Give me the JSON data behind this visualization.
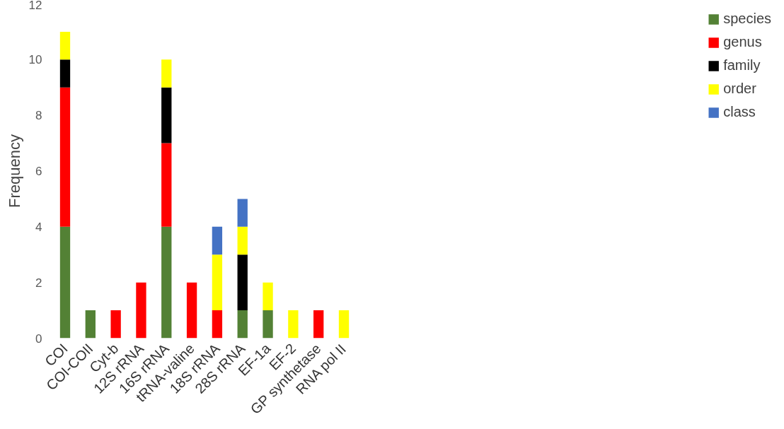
{
  "chart_data": {
    "type": "bar",
    "stacked": true,
    "ylabel": "Frequency",
    "categories": [
      "COI",
      "COI-COII",
      "Cyt-b",
      "12S rRNA",
      "16S rRNA",
      "tRNA-valine",
      "18S rRNA",
      "28S rRNA",
      "EF-1a",
      "EF-2",
      "GP synthetase",
      "RNA pol II"
    ],
    "series": [
      {
        "name": "species",
        "color": "#538135",
        "values": [
          4,
          1,
          null,
          null,
          4,
          null,
          null,
          1,
          1,
          null,
          null,
          null
        ]
      },
      {
        "name": "genus",
        "color": "#ff0000",
        "values": [
          5,
          null,
          1,
          2,
          3,
          2,
          1,
          null,
          null,
          null,
          1,
          null
        ]
      },
      {
        "name": "family",
        "color": "#000000",
        "values": [
          1,
          null,
          null,
          null,
          2,
          null,
          null,
          2,
          null,
          null,
          null,
          null
        ]
      },
      {
        "name": "order",
        "color": "#ffff00",
        "values": [
          1,
          null,
          null,
          null,
          1,
          null,
          2,
          1,
          1,
          1,
          null,
          1
        ]
      },
      {
        "name": "class",
        "color": "#4472c4",
        "values": [
          null,
          null,
          null,
          null,
          null,
          null,
          1,
          1,
          null,
          null,
          null,
          null
        ]
      }
    ],
    "ylim": [
      0,
      12
    ],
    "yticks": [
      0,
      2,
      4,
      6,
      8,
      10,
      12
    ],
    "grid": false,
    "legend": "right"
  }
}
